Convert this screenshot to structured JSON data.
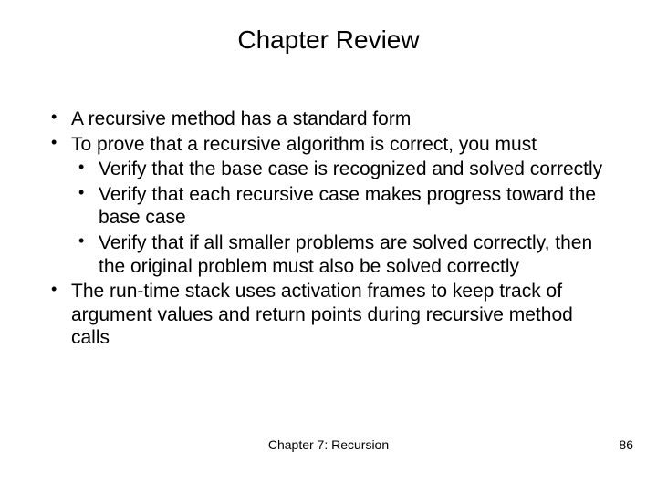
{
  "title": "Chapter Review",
  "bullets": {
    "b1": "A recursive method has a standard form",
    "b2": "To prove that a recursive algorithm is correct, you must",
    "b2_sub": {
      "s1": "Verify that the base case is recognized and solved correctly",
      "s2": "Verify that each recursive case makes progress toward the base case",
      "s3": "Verify that if all smaller problems are solved correctly, then the original problem must also be solved correctly"
    },
    "b3": "The run-time stack uses activation frames to keep track of argument values and return points during recursive method calls"
  },
  "footer": {
    "center": "Chapter 7: Recursion",
    "page": "86"
  }
}
